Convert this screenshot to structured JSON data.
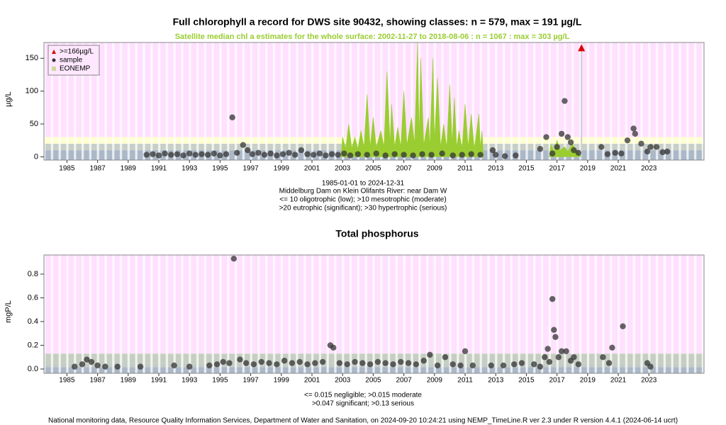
{
  "chart_data": [
    {
      "type": "scatter",
      "title": "Full chlorophyll a record for DWS site 90432, showing classes: n = 579, max = 191 µg/L",
      "subtitle": "Satellite median chl a estimates for the whole surface: 2002-11-27 to 2018-08-06 : n = 1067 : max = 303 µg/L",
      "subtitle_color": "#9acd32",
      "ylabel": "µg/L",
      "notes": [
        "1985-01-01 to 2024-12-31",
        "Middelburg Dam on Klein Olifants River: near Dam W",
        "<= 10 oligotrophic (low); >10 mesotrophic (moderate)",
        ">20 eutrophic (significant); >30 hypertrophic (serious)"
      ],
      "xlim": [
        1983.5,
        2026.6
      ],
      "ylim": [
        -5,
        174
      ],
      "xticks": [
        1985,
        1987,
        1989,
        1991,
        1993,
        1995,
        1997,
        1999,
        2001,
        2003,
        2005,
        2007,
        2009,
        2011,
        2013,
        2015,
        2017,
        2019,
        2021,
        2023
      ],
      "yticks": [
        0,
        50,
        100,
        150
      ],
      "band_edges": [
        10,
        20,
        30
      ],
      "band_colors": [
        "#aab8c8",
        "#c8cfc8",
        "#ffffd0",
        "#ffe0ff"
      ],
      "legend": "upper left",
      "series": [
        {
          "name": ">=166µg/L",
          "color": "#dd0000",
          "marker": "triangle",
          "x": [
            2018.6
          ],
          "values": [
            166
          ]
        },
        {
          "name": "sample",
          "color": "#333333",
          "marker": "circle",
          "x": [
            1990.2,
            1990.6,
            1991.0,
            1991.4,
            1991.8,
            1992.2,
            1992.6,
            1993.0,
            1993.4,
            1993.8,
            1994.2,
            1994.6,
            1995.0,
            1995.4,
            1995.8,
            1996.1,
            1996.5,
            1996.8,
            1997.1,
            1997.5,
            1997.9,
            1998.3,
            1998.7,
            1999.1,
            1999.5,
            1999.9,
            2000.3,
            2000.7,
            2001.1,
            2001.5,
            2001.9,
            2002.3,
            2002.7,
            2003.1,
            2003.5,
            2004.0,
            2004.6,
            2005.2,
            2005.8,
            2006.4,
            2007.0,
            2007.6,
            2008.2,
            2008.8,
            2009.5,
            2010.2,
            2010.8,
            2011.4,
            2012.0,
            2012.8,
            2013.0,
            2013.6,
            2014.3,
            2015.9,
            2016.3,
            2016.7,
            2017.0,
            2017.3,
            2017.5,
            2017.7,
            2017.9,
            2018.1,
            2018.4,
            2019.9,
            2020.3,
            2020.8,
            2021.2,
            2021.6,
            2022.0,
            2022.1,
            2022.5,
            2022.9,
            2023.1,
            2023.5,
            2023.9,
            2024.2
          ],
          "values": [
            3,
            4,
            2,
            5,
            3,
            4,
            2,
            5,
            3,
            4,
            3,
            5,
            2,
            4,
            60,
            6,
            18,
            10,
            4,
            6,
            3,
            5,
            2,
            4,
            6,
            3,
            10,
            4,
            3,
            5,
            2,
            4,
            3,
            5,
            2,
            4,
            3,
            5,
            2,
            4,
            3,
            2,
            4,
            3,
            5,
            2,
            3,
            4,
            3,
            10,
            3,
            1,
            2,
            12,
            30,
            5,
            15,
            35,
            85,
            30,
            22,
            10,
            6,
            15,
            4,
            6,
            5,
            25,
            43,
            35,
            20,
            8,
            15,
            15,
            7,
            8
          ]
        },
        {
          "name": "EONEMP",
          "color": "#9acd32",
          "marker": "area",
          "x": [
            2002.9,
            2003.0,
            2003.2,
            2003.4,
            2003.6,
            2003.8,
            2004.0,
            2004.2,
            2004.4,
            2004.6,
            2004.8,
            2005.0,
            2005.2,
            2005.5,
            2005.7,
            2005.9,
            2006.1,
            2006.2,
            2006.4,
            2006.6,
            2006.8,
            2007.0,
            2007.2,
            2007.5,
            2007.7,
            2007.9,
            2008.0,
            2008.1,
            2008.3,
            2008.6,
            2008.7,
            2008.9,
            2009.0,
            2009.2,
            2009.4,
            2009.6,
            2009.8,
            2010.0,
            2010.15,
            2010.3,
            2010.45,
            2010.6,
            2010.8,
            2011.0,
            2011.2,
            2011.4,
            2011.6,
            2011.9,
            2012.0,
            2012.1,
            2012.2,
            null,
            2016.5,
            2016.6,
            2016.8,
            2017.0,
            2017.2,
            2017.5,
            2017.7,
            2018.0,
            2018.3,
            2018.6
          ],
          "values": [
            0,
            30,
            12,
            50,
            12,
            30,
            12,
            40,
            14,
            95,
            15,
            60,
            14,
            40,
            15,
            130,
            20,
            80,
            15,
            45,
            15,
            100,
            18,
            60,
            20,
            174,
            30,
            150,
            18,
            60,
            15,
            150,
            25,
            120,
            15,
            50,
            14,
            110,
            20,
            90,
            15,
            40,
            12,
            80,
            15,
            65,
            12,
            65,
            14,
            40,
            0,
            null,
            0,
            20,
            8,
            25,
            10,
            15,
            8,
            20,
            8,
            0
          ]
        }
      ]
    },
    {
      "type": "scatter",
      "title": "Total phosphorus",
      "ylabel": "mgP/L",
      "notes": [
        "<= 0.015 negligible; >0.015 moderate",
        ">0.047 significant; >0.13 serious"
      ],
      "xlim": [
        1983.5,
        2026.6
      ],
      "ylim": [
        -0.036,
        0.961
      ],
      "xticks": [
        1985,
        1987,
        1989,
        1991,
        1993,
        1995,
        1997,
        1999,
        2001,
        2003,
        2005,
        2007,
        2009,
        2011,
        2013,
        2015,
        2017,
        2019,
        2021,
        2023
      ],
      "yticks": [
        {
          "value": 0,
          "label": "0.0"
        },
        0.2,
        0.4,
        0.6,
        0.8
      ],
      "band_edges": [
        0.015,
        0.047,
        0.13
      ],
      "band_colors": [
        "#aab8c8",
        "#c4ccc6",
        "#c6cec2",
        "#ffe0ff"
      ],
      "series": [
        {
          "color": "#333333",
          "marker": "circle",
          "x": [
            1985.5,
            1986.0,
            1986.3,
            1986.6,
            1987.0,
            1987.5,
            1988.3,
            1989.8,
            1992.0,
            1993.0,
            1994.3,
            1994.8,
            1995.2,
            1995.6,
            1995.9,
            1996.3,
            1996.7,
            1997.2,
            1997.7,
            1998.2,
            1998.7,
            1999.2,
            1999.7,
            2000.2,
            2000.7,
            2001.2,
            2001.7,
            2002.2,
            2002.4,
            2002.8,
            2003.3,
            2003.8,
            2004.3,
            2004.8,
            2005.3,
            2005.8,
            2006.3,
            2006.8,
            2007.3,
            2007.8,
            2008.3,
            2008.7,
            2009.2,
            2009.7,
            2010.2,
            2010.7,
            2011.0,
            2011.5,
            2012.7,
            2013.5,
            2014.2,
            2014.7,
            2015.5,
            2015.9,
            2016.2,
            2016.4,
            2016.5,
            2016.7,
            2016.8,
            2016.9,
            2017.1,
            2017.3,
            2017.6,
            2017.9,
            2018.1,
            2018.4,
            2020.0,
            2020.4,
            2020.6,
            2021.3,
            2022.9,
            2023.1
          ],
          "values": [
            0.02,
            0.04,
            0.08,
            0.06,
            0.03,
            0.02,
            0.02,
            0.02,
            0.03,
            0.02,
            0.03,
            0.04,
            0.06,
            0.05,
            0.93,
            0.08,
            0.05,
            0.04,
            0.06,
            0.05,
            0.04,
            0.07,
            0.05,
            0.06,
            0.04,
            0.05,
            0.06,
            0.2,
            0.18,
            0.05,
            0.04,
            0.06,
            0.05,
            0.04,
            0.06,
            0.05,
            0.04,
            0.06,
            0.05,
            0.04,
            0.07,
            0.12,
            0.03,
            0.1,
            0.04,
            0.03,
            0.15,
            0.03,
            0.03,
            0.03,
            0.04,
            0.05,
            0.04,
            0.02,
            0.1,
            0.17,
            0.06,
            0.59,
            0.33,
            0.27,
            0.1,
            0.15,
            0.15,
            0.07,
            0.1,
            0.04,
            0.1,
            0.05,
            0.18,
            0.36,
            0.05,
            0.02
          ]
        }
      ]
    }
  ],
  "footer": "National monitoring data, Resource Quality Information Services, Department of Water and Sanitation, on 2024-09-20 10:24:21 using NEMP_TimeLine.R ver 2.3 under R version 4.4.1 (2024-06-14 ucrt)"
}
